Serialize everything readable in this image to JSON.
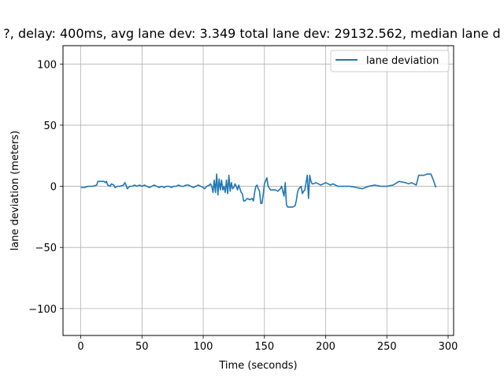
{
  "chart_data": {
    "type": "line",
    "title": "?, delay: 400ms, avg lane dev: 3.349 total lane dev: 29132.562, median lane d",
    "xlabel": "Time (seconds)",
    "ylabel": "lane deviation (meters)",
    "xlim": [
      -14.5,
      304.5
    ],
    "ylim": [
      -122,
      115
    ],
    "xticks": [
      0,
      50,
      100,
      150,
      200,
      250,
      300
    ],
    "yticks": [
      -100,
      -50,
      0,
      50,
      100
    ],
    "xtick_labels": [
      "0",
      "50",
      "100",
      "150",
      "200",
      "250",
      "300"
    ],
    "ytick_labels": [
      "−100",
      "−50",
      "0",
      "50",
      "100"
    ],
    "grid": true,
    "legend_position": "top-right",
    "series_color": "#1f77b4",
    "series": [
      {
        "name": "lane deviation",
        "points": [
          [
            0,
            -1
          ],
          [
            3,
            -1
          ],
          [
            6,
            0
          ],
          [
            10,
            0
          ],
          [
            13,
            1
          ],
          [
            14,
            4
          ],
          [
            17,
            4
          ],
          [
            19,
            4
          ],
          [
            20,
            3
          ],
          [
            21,
            4
          ],
          [
            22,
            1
          ],
          [
            24,
            0
          ],
          [
            25,
            2
          ],
          [
            27,
            1
          ],
          [
            28,
            -1
          ],
          [
            30,
            0
          ],
          [
            32,
            0
          ],
          [
            35,
            1
          ],
          [
            36,
            3
          ],
          [
            37,
            1
          ],
          [
            38,
            -2
          ],
          [
            40,
            0
          ],
          [
            42,
            0
          ],
          [
            44,
            1
          ],
          [
            46,
            0
          ],
          [
            48,
            1
          ],
          [
            50,
            0
          ],
          [
            52,
            1
          ],
          [
            54,
            0
          ],
          [
            56,
            -1
          ],
          [
            58,
            0
          ],
          [
            60,
            1
          ],
          [
            62,
            0
          ],
          [
            64,
            -1
          ],
          [
            66,
            0
          ],
          [
            68,
            -1
          ],
          [
            70,
            0
          ],
          [
            72,
            0
          ],
          [
            74,
            -1
          ],
          [
            76,
            0
          ],
          [
            78,
            0
          ],
          [
            80,
            1
          ],
          [
            82,
            0
          ],
          [
            84,
            0
          ],
          [
            86,
            1
          ],
          [
            88,
            1
          ],
          [
            90,
            0
          ],
          [
            92,
            -1
          ],
          [
            94,
            0
          ],
          [
            96,
            1
          ],
          [
            98,
            0
          ],
          [
            100,
            -1
          ],
          [
            101,
            -2
          ],
          [
            103,
            0
          ],
          [
            105,
            1
          ],
          [
            106,
            2
          ],
          [
            107,
            0
          ],
          [
            108,
            -5
          ],
          [
            109,
            5
          ],
          [
            110,
            -5
          ],
          [
            111,
            10
          ],
          [
            112,
            -7
          ],
          [
            113,
            6
          ],
          [
            114,
            -3
          ],
          [
            115,
            5
          ],
          [
            116,
            -3
          ],
          [
            117,
            0
          ],
          [
            118,
            -5
          ],
          [
            119,
            5
          ],
          [
            120,
            -6
          ],
          [
            121,
            9
          ],
          [
            122,
            -4
          ],
          [
            123,
            3
          ],
          [
            124,
            -2
          ],
          [
            125,
            -1
          ],
          [
            126,
            2
          ],
          [
            127,
            0
          ],
          [
            128,
            -3
          ],
          [
            129,
            1
          ],
          [
            130,
            -2
          ],
          [
            131,
            -5
          ],
          [
            132,
            -6
          ],
          [
            133,
            -12
          ],
          [
            134,
            -12
          ],
          [
            135,
            -11
          ],
          [
            136,
            -10
          ],
          [
            138,
            -11
          ],
          [
            140,
            -10
          ],
          [
            141,
            -12
          ],
          [
            142,
            -5
          ],
          [
            143,
            0
          ],
          [
            144,
            1
          ],
          [
            145,
            -2
          ],
          [
            146,
            -4
          ],
          [
            147,
            -14
          ],
          [
            148,
            -14
          ],
          [
            149,
            -7
          ],
          [
            150,
            2
          ],
          [
            152,
            7
          ],
          [
            153,
            0
          ],
          [
            155,
            -3
          ],
          [
            157,
            -3
          ],
          [
            159,
            -3
          ],
          [
            161,
            -4
          ],
          [
            162,
            -3
          ],
          [
            163,
            -2
          ],
          [
            164,
            0
          ],
          [
            165,
            -4
          ],
          [
            166,
            -8
          ],
          [
            167,
            3
          ],
          [
            168,
            -15
          ],
          [
            169,
            -17
          ],
          [
            171,
            -17
          ],
          [
            173,
            -17
          ],
          [
            175,
            -16
          ],
          [
            176,
            -12
          ],
          [
            177,
            -5
          ],
          [
            178,
            -2
          ],
          [
            179,
            -1
          ],
          [
            180,
            0
          ],
          [
            181,
            -6
          ],
          [
            182,
            -4
          ],
          [
            183,
            -3
          ],
          [
            184,
            3
          ],
          [
            185,
            9
          ],
          [
            186,
            -10
          ],
          [
            187,
            9
          ],
          [
            188,
            4
          ],
          [
            189,
            2
          ],
          [
            190,
            2
          ],
          [
            192,
            3
          ],
          [
            194,
            2
          ],
          [
            196,
            1
          ],
          [
            198,
            2
          ],
          [
            200,
            3
          ],
          [
            202,
            2
          ],
          [
            204,
            1
          ],
          [
            206,
            2
          ],
          [
            208,
            1
          ],
          [
            210,
            0
          ],
          [
            215,
            0
          ],
          [
            220,
            0
          ],
          [
            225,
            -1
          ],
          [
            230,
            -2
          ],
          [
            235,
            0
          ],
          [
            240,
            1
          ],
          [
            245,
            0
          ],
          [
            250,
            0
          ],
          [
            255,
            1
          ],
          [
            260,
            4
          ],
          [
            265,
            3
          ],
          [
            268,
            2
          ],
          [
            270,
            3
          ],
          [
            272,
            2
          ],
          [
            274,
            1
          ],
          [
            276,
            9
          ],
          [
            278,
            9
          ],
          [
            280,
            9
          ],
          [
            283,
            10
          ],
          [
            286,
            10
          ],
          [
            288,
            5
          ],
          [
            290,
            -1
          ]
        ]
      }
    ]
  }
}
